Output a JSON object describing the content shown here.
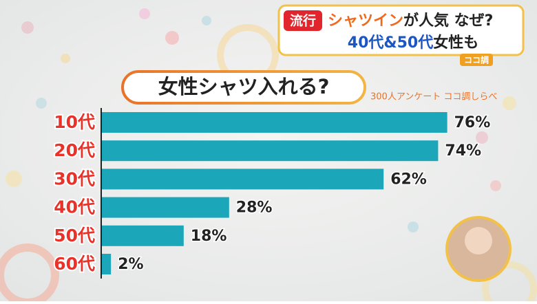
{
  "header": {
    "badge": "流行",
    "line1": [
      "シャツイン",
      "が人気 なぜ?"
    ],
    "line2": [
      "40代&50代",
      "女性も"
    ],
    "logo": "ココ調"
  },
  "chart_data": {
    "type": "bar",
    "orientation": "horizontal",
    "title": "女性シャツ入れる?",
    "subtitle": "300人アンケート ココ調しらべ",
    "categories": [
      "10代",
      "20代",
      "30代",
      "40代",
      "50代",
      "60代"
    ],
    "values": [
      76,
      74,
      62,
      28,
      18,
      2
    ],
    "value_labels": [
      "76%",
      "74%",
      "62%",
      "28%",
      "18%",
      "2%"
    ],
    "color": "#1ba6b9"
  }
}
